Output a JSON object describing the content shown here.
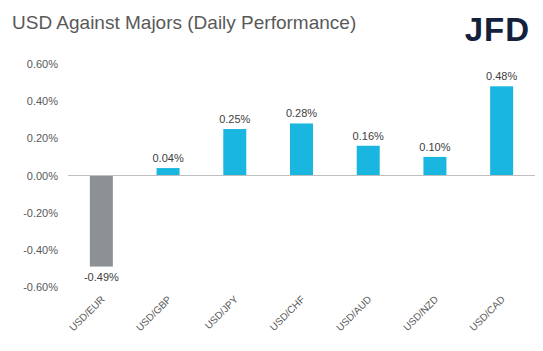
{
  "logo": "JFD",
  "chart_data": {
    "type": "bar",
    "title": "USD Against Majors (Daily Performance)",
    "categories": [
      "USD/EUR",
      "USD/GBP",
      "USD/JPY",
      "USD/CHF",
      "USD/AUD",
      "USD/NZD",
      "USD/CAD"
    ],
    "values": [
      -0.49,
      0.04,
      0.25,
      0.28,
      0.16,
      0.1,
      0.48
    ],
    "value_labels": [
      "-0.49%",
      "0.04%",
      "0.25%",
      "0.28%",
      "0.16%",
      "0.10%",
      "0.48%"
    ],
    "colors": [
      "#8d9195",
      "#19b6e0",
      "#19b6e0",
      "#19b6e0",
      "#19b6e0",
      "#19b6e0",
      "#19b6e0"
    ],
    "ylim": [
      -0.6,
      0.6
    ],
    "yticks": [
      {
        "value": -0.6,
        "label": "-0.60%"
      },
      {
        "value": -0.4,
        "label": "-0.40%"
      },
      {
        "value": -0.2,
        "label": "-0.20%"
      },
      {
        "value": 0,
        "label": "0.00%"
      },
      {
        "value": 0.2,
        "label": "0.20%"
      },
      {
        "value": 0.4,
        "label": "0.40%"
      },
      {
        "value": 0.6,
        "label": "0.60%"
      }
    ],
    "grid": false,
    "data_labels": true
  }
}
